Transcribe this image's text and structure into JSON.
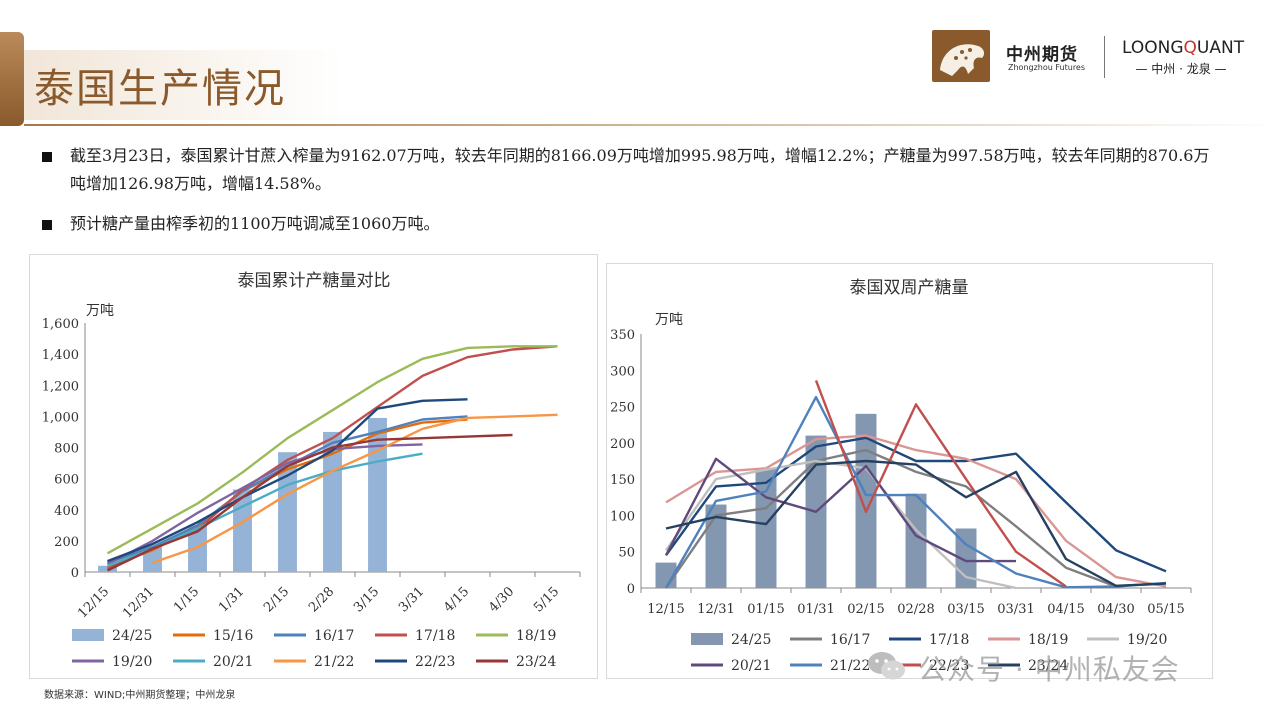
{
  "header": {
    "title": "泰国生产情况",
    "logo_cn": "中州期货",
    "logo_en": "Zhongzhou Futures",
    "brand_prefix": "LOONG",
    "brand_q": "Q",
    "brand_suffix": "UANT",
    "brand_sub": "— 中州 · 龙泉 —"
  },
  "bullets": [
    "截至3月23日，泰国累计甘蔗入榨量为9162.07万吨，较去年同期的8166.09万吨增加995.98万吨，增幅12.2%；产糖量为997.58万吨，较去年同期的870.6万吨增加126.98万吨，增幅14.58%。",
    "预计糖产量由榨季初的1100万吨调减至1060万吨。"
  ],
  "source_note": "数据来源：WIND;中州期货整理；中州龙泉",
  "watermark": "公众号 · 中州私友会",
  "colors": {
    "accent": "#8a5a2c",
    "s2425_left": "#95b3d7",
    "s2425_right": "#8497b0"
  },
  "chart_data": [
    {
      "type": "line",
      "title": "泰国累计产糖量对比",
      "ylabel": "万吨",
      "ylim": [
        0,
        1600
      ],
      "yticks": [
        0,
        200,
        400,
        600,
        800,
        1000,
        1200,
        1400,
        1600
      ],
      "ytick_labels": [
        "0",
        "200",
        "400",
        "600",
        "800",
        "1,000",
        "1,200",
        "1,400",
        "1,600"
      ],
      "categories": [
        "12/15",
        "12/31",
        "1/15",
        "1/31",
        "2/15",
        "2/28",
        "3/15",
        "3/31",
        "4/15",
        "4/30",
        "5/15"
      ],
      "bar_series": {
        "name": "24/25",
        "color": "#95b3d7",
        "values": [
          40,
          170,
          300,
          530,
          770,
          900,
          990,
          null,
          null,
          null,
          null
        ]
      },
      "series": [
        {
          "name": "15/16",
          "color": "#e46c0a",
          "values": [
            30,
            140,
            290,
            520,
            660,
            760,
            890,
            960,
            980,
            null,
            null
          ]
        },
        {
          "name": "16/17",
          "color": "#4f81bd",
          "values": [
            60,
            160,
            300,
            520,
            680,
            830,
            900,
            980,
            1000,
            null,
            null
          ]
        },
        {
          "name": "17/18",
          "color": "#c0504d",
          "values": [
            20,
            150,
            270,
            530,
            720,
            860,
            1060,
            1260,
            1380,
            1430,
            1450
          ]
        },
        {
          "name": "18/19",
          "color": "#9bbb59",
          "values": [
            120,
            280,
            440,
            640,
            860,
            1040,
            1220,
            1370,
            1440,
            1450,
            1450
          ]
        },
        {
          "name": "19/20",
          "color": "#8064a2",
          "values": [
            50,
            200,
            380,
            540,
            700,
            790,
            810,
            820,
            null,
            null,
            null
          ]
        },
        {
          "name": "20/21",
          "color": "#4bacc6",
          "values": [
            40,
            150,
            280,
            420,
            560,
            650,
            710,
            760,
            null,
            null,
            null
          ]
        },
        {
          "name": "21/22",
          "color": "#f79646",
          "values": [
            null,
            60,
            160,
            320,
            500,
            650,
            780,
            920,
            990,
            1000,
            1010
          ]
        },
        {
          "name": "22/23",
          "color": "#1f497d",
          "values": [
            70,
            180,
            320,
            480,
            620,
            780,
            1050,
            1100,
            1110,
            null,
            null
          ]
        },
        {
          "name": "23/24",
          "color": "#953735",
          "values": [
            10,
            150,
            260,
            480,
            680,
            800,
            850,
            860,
            870,
            880,
            null
          ]
        }
      ]
    },
    {
      "type": "line",
      "title": "泰国双周产糖量",
      "ylabel": "万吨",
      "ylim": [
        0,
        350
      ],
      "yticks": [
        0,
        50,
        100,
        150,
        200,
        250,
        300,
        350
      ],
      "ytick_labels": [
        "0",
        "50",
        "100",
        "150",
        "200",
        "250",
        "300",
        "350"
      ],
      "categories": [
        "12/15",
        "12/31",
        "01/15",
        "01/31",
        "02/15",
        "02/28",
        "03/15",
        "03/31",
        "04/15",
        "04/30",
        "05/15"
      ],
      "bar_series": {
        "name": "24/25",
        "color": "#8497b0",
        "values": [
          35,
          115,
          165,
          210,
          240,
          130,
          82,
          null,
          null,
          null,
          null
        ]
      },
      "series": [
        {
          "name": "16/17",
          "color": "#7f7f7f",
          "values": [
            0,
            100,
            110,
            175,
            190,
            160,
            140,
            85,
            28,
            2,
            null
          ]
        },
        {
          "name": "17/18",
          "color": "#1f497d",
          "values": [
            45,
            140,
            145,
            195,
            207,
            175,
            175,
            185,
            118,
            52,
            23
          ]
        },
        {
          "name": "18/19",
          "color": "#da9694",
          "values": [
            118,
            160,
            165,
            205,
            210,
            190,
            178,
            150,
            65,
            15,
            2
          ]
        },
        {
          "name": "19/20",
          "color": "#bfbfbf",
          "values": [
            52,
            150,
            163,
            175,
            165,
            80,
            15,
            0,
            null,
            null,
            null
          ]
        },
        {
          "name": "20/21",
          "color": "#604a7b",
          "values": [
            45,
            178,
            125,
            105,
            168,
            72,
            37,
            37,
            null,
            null,
            null
          ]
        },
        {
          "name": "21/22",
          "color": "#4f81bd",
          "values": [
            0,
            120,
            133,
            263,
            128,
            128,
            60,
            20,
            1,
            2,
            7
          ]
        },
        {
          "name": "22/23",
          "color": "#c0504d",
          "values": [
            null,
            null,
            null,
            286,
            105,
            253,
            150,
            50,
            2,
            null,
            null
          ]
        },
        {
          "name": "23/24",
          "color": "#254061",
          "values": [
            82,
            98,
            88,
            170,
            175,
            170,
            125,
            160,
            40,
            3,
            6
          ]
        }
      ]
    }
  ]
}
